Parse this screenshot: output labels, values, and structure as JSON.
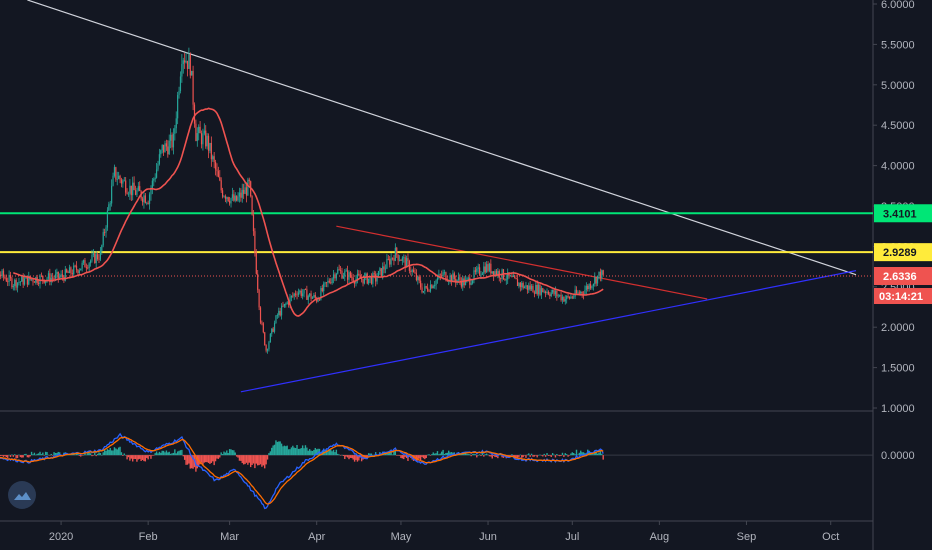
{
  "chart_data": [
    {
      "type": "candlestick",
      "x_ticks": [
        "2020",
        "Feb",
        "Mar",
        "Apr",
        "May",
        "Jun",
        "Jul",
        "Aug",
        "Sep",
        "Oct"
      ],
      "y_ticks": [
        "1.0000",
        "1.5000",
        "2.0000",
        "2.5000",
        "3.0000",
        "3.5000",
        "4.0000",
        "4.5000",
        "5.0000",
        "5.5000",
        "6.0000"
      ],
      "ylim": [
        1.0,
        6.0
      ],
      "price_path": [
        [
          "2019-12-01",
          2.75
        ],
        [
          "2019-12-08",
          2.7
        ],
        [
          "2019-12-15",
          2.55
        ],
        [
          "2019-12-22",
          2.6
        ],
        [
          "2020-01-01",
          2.62
        ],
        [
          "2020-01-08",
          2.75
        ],
        [
          "2020-01-15",
          2.9
        ],
        [
          "2020-01-20",
          3.9
        ],
        [
          "2020-01-26",
          3.7
        ],
        [
          "2020-02-01",
          3.6
        ],
        [
          "2020-02-06",
          4.2
        ],
        [
          "2020-02-10",
          4.3
        ],
        [
          "2020-02-13",
          5.4
        ],
        [
          "2020-02-16",
          5.25
        ],
        [
          "2020-02-18",
          4.4
        ],
        [
          "2020-02-22",
          4.3
        ],
        [
          "2020-02-27",
          3.7
        ],
        [
          "2020-03-03",
          3.55
        ],
        [
          "2020-03-08",
          3.75
        ],
        [
          "2020-03-12",
          2.1
        ],
        [
          "2020-03-14",
          1.72
        ],
        [
          "2020-03-18",
          2.15
        ],
        [
          "2020-03-25",
          2.45
        ],
        [
          "2020-04-01",
          2.35
        ],
        [
          "2020-04-08",
          2.7
        ],
        [
          "2020-04-15",
          2.6
        ],
        [
          "2020-04-22",
          2.6
        ],
        [
          "2020-04-29",
          2.92
        ],
        [
          "2020-05-04",
          2.75
        ],
        [
          "2020-05-09",
          2.45
        ],
        [
          "2020-05-16",
          2.65
        ],
        [
          "2020-05-24",
          2.55
        ],
        [
          "2020-05-31",
          2.75
        ],
        [
          "2020-06-06",
          2.65
        ],
        [
          "2020-06-14",
          2.5
        ],
        [
          "2020-06-22",
          2.45
        ],
        [
          "2020-06-29",
          2.35
        ],
        [
          "2020-07-05",
          2.45
        ],
        [
          "2020-07-11",
          2.66
        ],
        [
          "2020-07-12",
          2.63
        ]
      ],
      "moving_average_color": "#ef5350",
      "horizontal_levels": [
        {
          "price": 3.4101,
          "label": "3.4101",
          "color": "#00e676"
        },
        {
          "price": 2.9289,
          "label": "2.9289",
          "color": "#ffeb3b"
        }
      ],
      "current_price": {
        "label": "2.6336",
        "countdown": "03:14:21",
        "color": "#ef5350"
      },
      "trend_lines": [
        {
          "from": [
            "2019-12-20",
            6.05
          ],
          "to": [
            "2020-10-10",
            2.65
          ],
          "color": "#d1d4dc"
        },
        {
          "from": [
            "2020-03-05",
            1.2
          ],
          "to": [
            "2020-10-10",
            2.7
          ],
          "color": "#3030ff"
        },
        {
          "from": [
            "2020-04-08",
            3.25
          ],
          "to": [
            "2020-08-18",
            2.35
          ],
          "color": "#d32f2f"
        }
      ]
    },
    {
      "type": "line",
      "indicator": "oscillator",
      "y_ticks": [
        "0.0000"
      ],
      "ylim": [
        -1.0,
        0.6
      ],
      "line_colors": [
        "#2962ff",
        "#ff6d00"
      ],
      "path": [
        [
          "2019-12-01",
          0.02
        ],
        [
          "2019-12-20",
          -0.12
        ],
        [
          "2020-01-01",
          0.0
        ],
        [
          "2020-01-15",
          0.08
        ],
        [
          "2020-01-22",
          0.35
        ],
        [
          "2020-02-01",
          0.05
        ],
        [
          "2020-02-13",
          0.3
        ],
        [
          "2020-02-18",
          -0.15
        ],
        [
          "2020-02-25",
          -0.45
        ],
        [
          "2020-03-03",
          -0.25
        ],
        [
          "2020-03-14",
          -0.95
        ],
        [
          "2020-03-18",
          -0.55
        ],
        [
          "2020-03-28",
          -0.1
        ],
        [
          "2020-04-08",
          0.2
        ],
        [
          "2020-04-18",
          -0.05
        ],
        [
          "2020-04-29",
          0.1
        ],
        [
          "2020-05-09",
          -0.15
        ],
        [
          "2020-05-20",
          0.02
        ],
        [
          "2020-05-31",
          0.06
        ],
        [
          "2020-06-14",
          -0.08
        ],
        [
          "2020-06-29",
          -0.1
        ],
        [
          "2020-07-06",
          0.03
        ],
        [
          "2020-07-11",
          0.1
        ],
        [
          "2020-07-12",
          0.05
        ]
      ]
    }
  ]
}
